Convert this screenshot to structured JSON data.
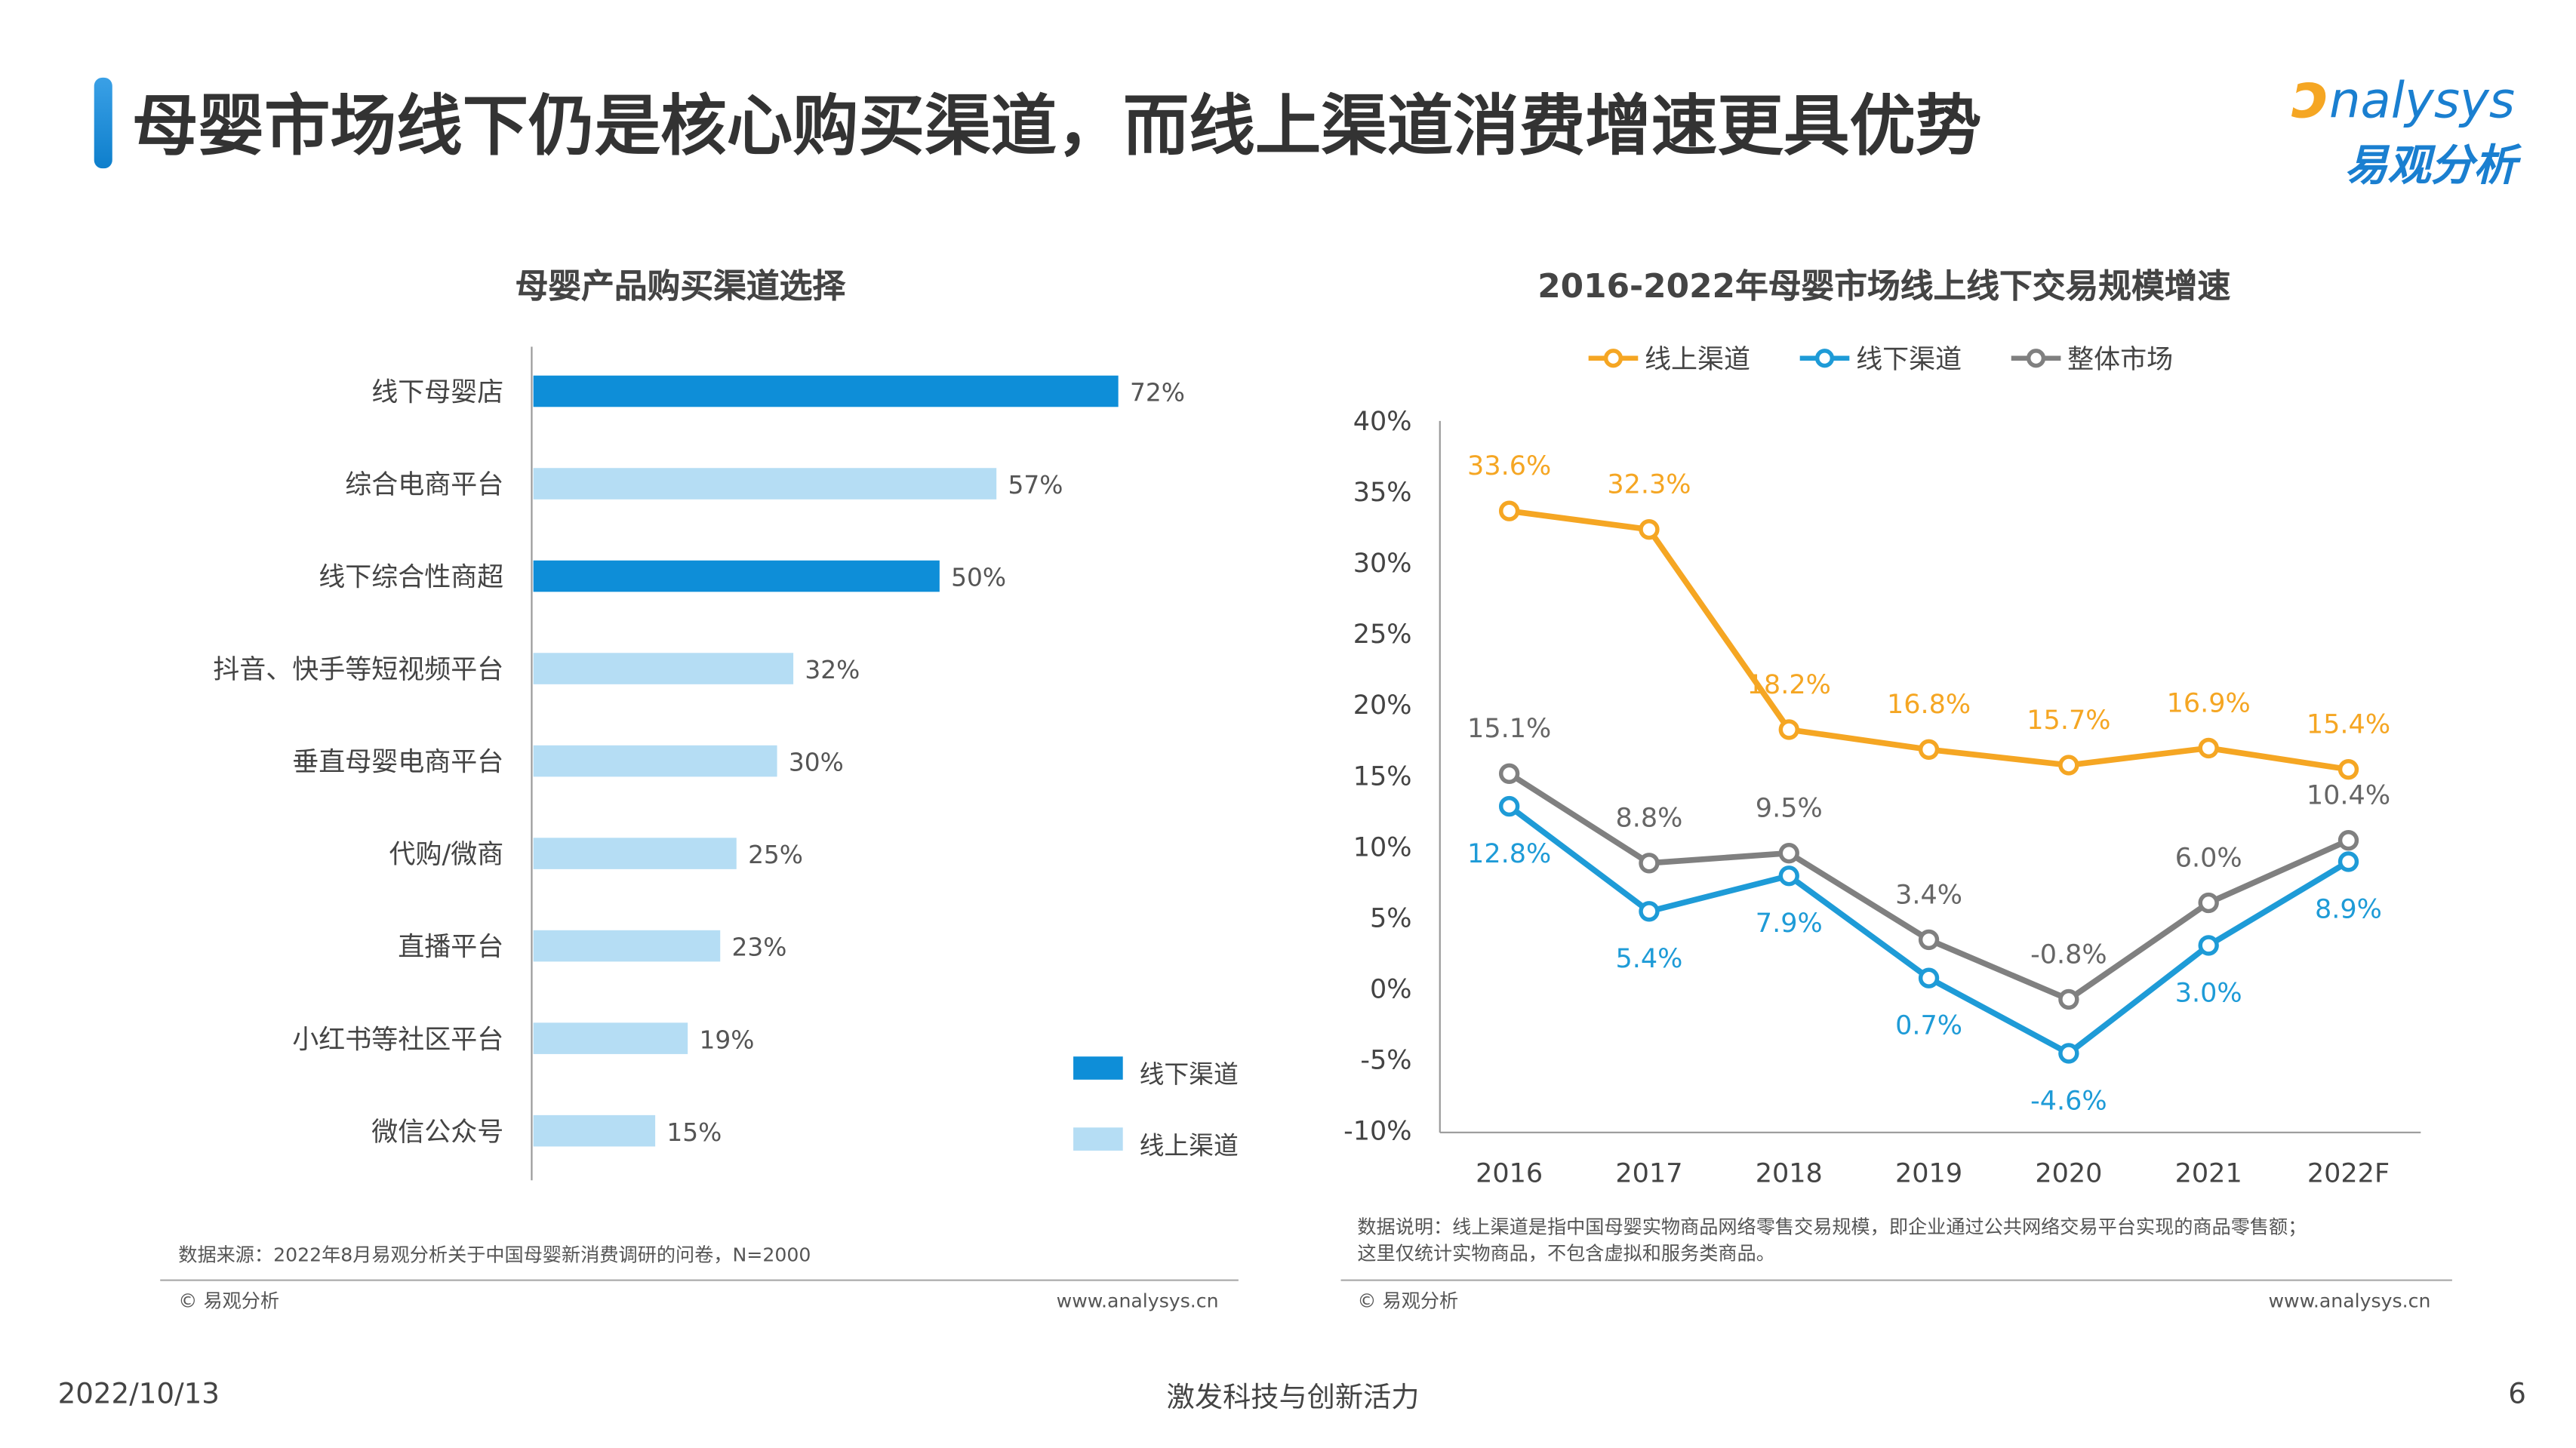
{
  "header": {
    "title": "母婴市场线下仍是核心购买渠道，而线上渠道消费增速更具优势",
    "logo_en": "analysys",
    "logo_cn": "易观分析"
  },
  "colors": {
    "offline_bar": "#0E8ED8",
    "online_bar": "#B5DDF4",
    "online_line": "#F5A623",
    "offline_line": "#1E9BD7",
    "overall_line": "#808080",
    "title_accent": "#1A88D8"
  },
  "chart_data": [
    {
      "type": "bar",
      "orientation": "horizontal",
      "title": "母婴产品购买渠道选择",
      "categories": [
        "线下母婴店",
        "综合电商平台",
        "线下综合性商超",
        "抖音、快手等短视频平台",
        "垂直母婴电商平台",
        "代购/微商",
        "直播平台",
        "小红书等社区平台",
        "微信公众号"
      ],
      "values": [
        72,
        57,
        50,
        32,
        30,
        25,
        23,
        19,
        15
      ],
      "value_labels": [
        "72%",
        "57%",
        "50%",
        "32%",
        "30%",
        "25%",
        "23%",
        "19%",
        "15%"
      ],
      "channel": [
        "offline",
        "online",
        "offline",
        "online",
        "online",
        "online",
        "online",
        "online",
        "online"
      ],
      "legend": [
        {
          "name": "线下渠道",
          "key": "offline"
        },
        {
          "name": "线上渠道",
          "key": "online"
        }
      ],
      "legend_position": "bottom-right",
      "grid": false
    },
    {
      "type": "line",
      "title": "2016-2022年母婴市场线上线下交易规模增速",
      "x": [
        "2016",
        "2017",
        "2018",
        "2019",
        "2020",
        "2021",
        "2022F"
      ],
      "ylim": [
        -10,
        40
      ],
      "yticks": [
        "40%",
        "35%",
        "30%",
        "25%",
        "20%",
        "15%",
        "10%",
        "5%",
        "0%",
        "-5%",
        "-10%"
      ],
      "ytick_values": [
        40,
        35,
        30,
        25,
        20,
        15,
        10,
        5,
        0,
        -5,
        -10
      ],
      "series": [
        {
          "name": "线上渠道",
          "key": "online",
          "values": [
            33.6,
            32.3,
            18.2,
            16.8,
            15.7,
            16.9,
            15.4
          ],
          "labels": [
            "33.6%",
            "32.3%",
            "18.2%",
            "16.8%",
            "15.7%",
            "16.9%",
            "15.4%"
          ]
        },
        {
          "name": "线下渠道",
          "key": "offline",
          "values": [
            12.8,
            5.4,
            7.9,
            0.7,
            -4.6,
            3.0,
            8.9
          ],
          "labels": [
            "12.8%",
            "5.4%",
            "7.9%",
            "0.7%",
            "-4.6%",
            "3.0%",
            "8.9%"
          ]
        },
        {
          "name": "整体市场",
          "key": "overall",
          "values": [
            15.1,
            8.8,
            9.5,
            3.4,
            -0.8,
            6.0,
            10.4
          ],
          "labels": [
            "15.1%",
            "8.8%",
            "9.5%",
            "3.4%",
            "-0.8%",
            "6.0%",
            "10.4%"
          ]
        }
      ],
      "legend_position": "top",
      "grid": false
    }
  ],
  "left_panel": {
    "source": "数据来源：2022年8月易观分析关于中国母婴新消费调研的问卷，N=2000",
    "copyright": "© 易观分析",
    "website": "www.analysys.cn"
  },
  "right_panel": {
    "note_line1": "数据说明：线上渠道是指中国母婴实物商品网络零售交易规模，即企业通过公共网络交易平台实现的商品零售额；",
    "note_line2": "这里仅统计实物商品，不包含虚拟和服务类商品。",
    "copyright": "© 易观分析",
    "website": "www.analysys.cn"
  },
  "footer": {
    "date": "2022/10/13",
    "slogan": "激发科技与创新活力",
    "page": "6"
  }
}
